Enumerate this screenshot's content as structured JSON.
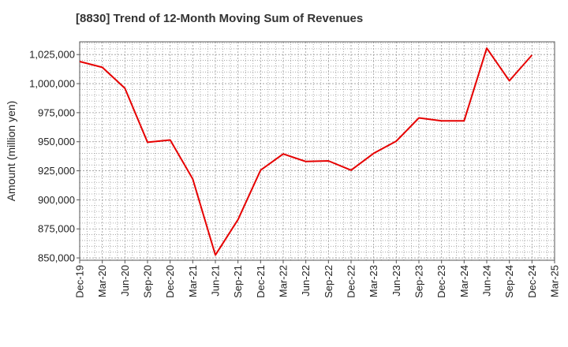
{
  "chart_data": {
    "type": "line",
    "title": "[8830]  Trend of 12-Month Moving Sum of Revenues",
    "xlabel": "",
    "ylabel": "Amount (million yen)",
    "ylim": [
      848000,
      1036000
    ],
    "grid": true,
    "x_tick_labels": [
      "Dec-19",
      "Mar-20",
      "Jun-20",
      "Sep-20",
      "Dec-20",
      "Mar-21",
      "Jun-21",
      "Sep-21",
      "Dec-21",
      "Mar-22",
      "Jun-22",
      "Sep-22",
      "Dec-22",
      "Mar-23",
      "Jun-23",
      "Sep-23",
      "Dec-23",
      "Mar-24",
      "Jun-24",
      "Sep-24",
      "Dec-24",
      "Mar-25"
    ],
    "y_ticks": [
      850000,
      875000,
      900000,
      925000,
      950000,
      975000,
      1000000,
      1025000
    ],
    "y_tick_labels": [
      "850,000",
      "875,000",
      "900,000",
      "925,000",
      "950,000",
      "975,000",
      "1,000,000",
      "1,025,000"
    ],
    "series": [
      {
        "color": "#e60000",
        "x": [
          "Dec-19",
          "Mar-20",
          "Jun-20",
          "Sep-20",
          "Dec-20",
          "Mar-21",
          "Jun-21",
          "Sep-21",
          "Dec-21",
          "Mar-22",
          "Jun-22",
          "Sep-22",
          "Dec-22",
          "Mar-23",
          "Jun-23",
          "Sep-23",
          "Dec-23",
          "Mar-24",
          "Jun-24",
          "Sep-24",
          "Dec-24"
        ],
        "values": [
          1019000,
          1014000,
          996000,
          949500,
          951500,
          918000,
          852500,
          883000,
          925500,
          939500,
          933000,
          933500,
          925500,
          940000,
          950500,
          970500,
          968000,
          968000,
          1030500,
          1002500,
          1024500
        ]
      }
    ]
  }
}
